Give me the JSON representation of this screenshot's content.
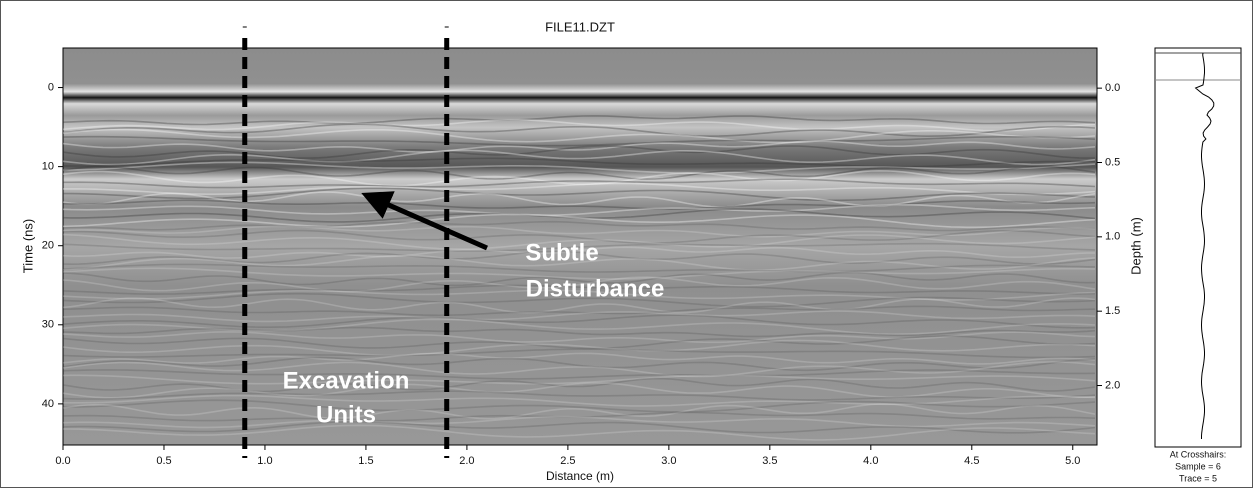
{
  "title": "FILE11.DZT",
  "x_axis": {
    "label": "Distance (m)",
    "lim": [
      0,
      5.12
    ],
    "ticks": [
      {
        "value": 0,
        "label": "0.0"
      },
      0.5,
      {
        "value": 1,
        "label": "1.0"
      },
      1.5,
      {
        "value": 2,
        "label": "2.0"
      },
      2.5,
      {
        "value": 3,
        "label": "3.0"
      },
      3.5,
      {
        "value": 4,
        "label": "4.0"
      },
      4.5,
      {
        "value": 5,
        "label": "5.0"
      }
    ]
  },
  "y_axis": {
    "label": "Time (ns)",
    "lim": [
      -5,
      45.2
    ],
    "ticks": [
      0,
      10,
      20,
      30,
      40
    ]
  },
  "y2_axis": {
    "label": "Depth (m)",
    "lim": [
      -0.27,
      2.4
    ],
    "ticks": [
      {
        "value": 0,
        "label": "0.0"
      },
      0.5,
      {
        "value": 1,
        "label": "1.0"
      },
      1.5,
      {
        "value": 2,
        "label": "2.0"
      }
    ]
  },
  "excavation_lines": [
    0.9,
    1.9
  ],
  "annotations": {
    "disturbance": [
      "Subtle",
      "Disturbance"
    ],
    "excavation": [
      "Excavation",
      "Units"
    ]
  },
  "crosshairs": [
    "At Crosshairs:",
    "Sample = 6",
    "Trace = 5"
  ]
}
